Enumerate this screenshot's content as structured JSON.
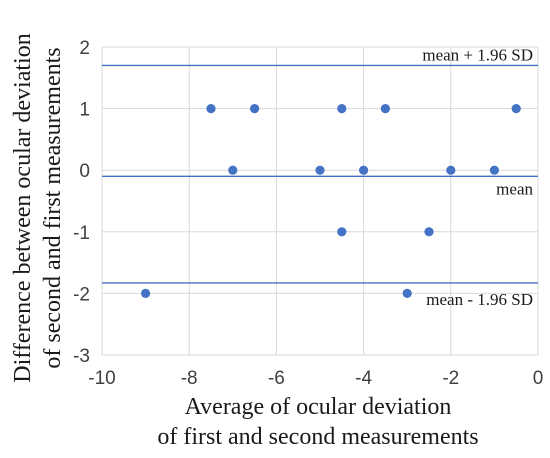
{
  "chart_data": {
    "type": "scatter",
    "title": "",
    "xlabel": [
      "Average of ocular deviation",
      "of first and second measurements"
    ],
    "ylabel": [
      "Difference between ocular deviation",
      "of second and first measurements"
    ],
    "xlim": [
      -10,
      0
    ],
    "ylim": [
      -3,
      2
    ],
    "xticks": [
      -10,
      -8,
      -6,
      -4,
      -2,
      0
    ],
    "yticks": [
      -3,
      -2,
      -1,
      0,
      1,
      2
    ],
    "x_tick_labels": [
      "-10",
      "-8",
      "-6",
      "-4",
      "-2",
      "0"
    ],
    "y_tick_labels": [
      "-3",
      "-2",
      "-1",
      "0",
      "1",
      "2"
    ],
    "grid": true,
    "points": [
      {
        "x": -7.5,
        "y": 1
      },
      {
        "x": -6.5,
        "y": 1
      },
      {
        "x": -4.5,
        "y": 1
      },
      {
        "x": -3.5,
        "y": 1
      },
      {
        "x": -0.5,
        "y": 1
      },
      {
        "x": -7.0,
        "y": 0
      },
      {
        "x": -5.0,
        "y": 0
      },
      {
        "x": -4.0,
        "y": 0
      },
      {
        "x": -2.0,
        "y": 0
      },
      {
        "x": -1.0,
        "y": 0
      },
      {
        "x": -4.5,
        "y": -1
      },
      {
        "x": -2.5,
        "y": -1
      },
      {
        "x": -9.0,
        "y": -2
      },
      {
        "x": -3.0,
        "y": -2
      }
    ],
    "reference_lines": [
      {
        "label": "mean + 1.96 SD",
        "y": 1.7
      },
      {
        "label": "mean",
        "y": -0.1
      },
      {
        "label": "mean - 1.96 SD",
        "y": -1.83
      }
    ],
    "colors": {
      "points": "#4472c4",
      "lines": "#4472c4",
      "grid": "#d9d9d9"
    }
  }
}
